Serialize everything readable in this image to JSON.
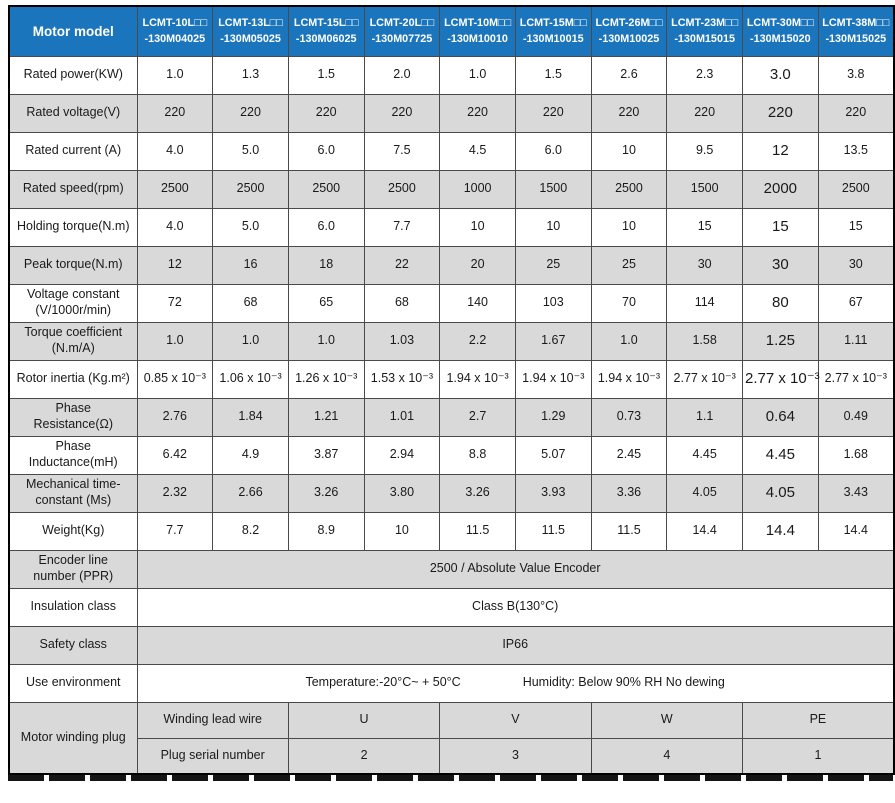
{
  "colors": {
    "header_blue": "#1b75bc",
    "row_gray": "#d9d9d9",
    "border": "#4a4a4a"
  },
  "table": {
    "header": {
      "label": "Motor model",
      "models": [
        "LCMT-10L□□\n-130M04025",
        "LCMT-13L□□\n-130M05025",
        "LCMT-15L□□\n-130M06025",
        "LCMT-20L□□\n-130M07725",
        "LCMT-10M□□\n-130M10010",
        "LCMT-15M□□\n-130M10015",
        "LCMT-26M□□\n-130M10025",
        "LCMT-23M□□\n-130M15015",
        "LCMT-30M□□\n-130M15020",
        "LCMT-38M□□\n-130M15025"
      ]
    },
    "rows": [
      {
        "type": "cells",
        "shade": false,
        "label": "Rated power(KW)",
        "values": [
          "1.0",
          "1.3",
          "1.5",
          "2.0",
          "1.0",
          "1.5",
          "2.6",
          "2.3",
          "3.0",
          "3.8"
        ]
      },
      {
        "type": "cells",
        "shade": true,
        "label": "Rated voltage(V)",
        "values": [
          "220",
          "220",
          "220",
          "220",
          "220",
          "220",
          "220",
          "220",
          "220",
          "220"
        ]
      },
      {
        "type": "cells",
        "shade": false,
        "label": "Rated current (A)",
        "values": [
          "4.0",
          "5.0",
          "6.0",
          "7.5",
          "4.5",
          "6.0",
          "10",
          "9.5",
          "12",
          "13.5"
        ]
      },
      {
        "type": "cells",
        "shade": true,
        "label": "Rated speed(rpm)",
        "values": [
          "2500",
          "2500",
          "2500",
          "2500",
          "1000",
          "1500",
          "2500",
          "1500",
          "2000",
          "2500"
        ]
      },
      {
        "type": "cells",
        "shade": false,
        "label": "Holding torque(N.m)",
        "values": [
          "4.0",
          "5.0",
          "6.0",
          "7.7",
          "10",
          "10",
          "10",
          "15",
          "15",
          "15"
        ]
      },
      {
        "type": "cells",
        "shade": true,
        "label": "Peak torque(N.m)",
        "values": [
          "12",
          "16",
          "18",
          "22",
          "20",
          "25",
          "25",
          "30",
          "30",
          "30"
        ]
      },
      {
        "type": "cells",
        "shade": false,
        "label": "Voltage constant (V/1000r/min)",
        "values": [
          "72",
          "68",
          "65",
          "68",
          "140",
          "103",
          "70",
          "114",
          "80",
          "67"
        ]
      },
      {
        "type": "cells",
        "shade": true,
        "label": "Torque coefficient (N.m/A)",
        "values": [
          "1.0",
          "1.0",
          "1.0",
          "1.03",
          "2.2",
          "1.67",
          "1.0",
          "1.58",
          "1.25",
          "1.11"
        ]
      },
      {
        "type": "cells",
        "shade": false,
        "label": "Rotor inertia (Kg.m²)",
        "values": [
          "0.85 x 10⁻³",
          "1.06 x 10⁻³",
          "1.26 x 10⁻³",
          "1.53 x 10⁻³",
          "1.94 x 10⁻³",
          "1.94 x 10⁻³",
          "1.94 x 10⁻³",
          "2.77 x 10⁻³",
          "2.77 x 10⁻³",
          "2.77 x 10⁻³"
        ]
      },
      {
        "type": "cells",
        "shade": true,
        "label": "Phase Resistance(Ω)",
        "values": [
          "2.76",
          "1.84",
          "1.21",
          "1.01",
          "2.7",
          "1.29",
          "0.73",
          "1.1",
          "0.64",
          "0.49"
        ]
      },
      {
        "type": "cells",
        "shade": false,
        "label": "Phase Inductance(mH)",
        "values": [
          "6.42",
          "4.9",
          "3.87",
          "2.94",
          "8.8",
          "5.07",
          "2.45",
          "4.45",
          "4.45",
          "1.68"
        ]
      },
      {
        "type": "cells",
        "shade": true,
        "label": "Mechanical time-constant (Ms)",
        "values": [
          "2.32",
          "2.66",
          "3.26",
          "3.80",
          "3.26",
          "3.93",
          "3.36",
          "4.05",
          "4.05",
          "3.43"
        ]
      },
      {
        "type": "cells",
        "shade": false,
        "label": "Weight(Kg)",
        "values": [
          "7.7",
          "8.2",
          "8.9",
          "10",
          "11.5",
          "11.5",
          "11.5",
          "14.4",
          "14.4",
          "14.4"
        ]
      },
      {
        "type": "span",
        "shade": true,
        "label": "Encoder line number (PPR)",
        "value": "2500 / Absolute Value Encoder"
      },
      {
        "type": "span",
        "shade": false,
        "label": "Insulation class",
        "value": "Class B(130°C)"
      },
      {
        "type": "span",
        "shade": true,
        "label": "Safety class",
        "value": "IP66"
      },
      {
        "type": "dual",
        "shade": false,
        "label": "Use environment",
        "left": "Temperature:-20°C~ + 50°C",
        "right": "Humidity: Below 90% RH No dewing"
      }
    ],
    "winding": {
      "label": "Motor winding plug",
      "rows": [
        {
          "label": "Winding lead wire",
          "values": [
            "U",
            "V",
            "W",
            "PE"
          ]
        },
        {
          "label": "Plug serial number",
          "values": [
            "2",
            "3",
            "4",
            "1"
          ]
        }
      ]
    }
  }
}
